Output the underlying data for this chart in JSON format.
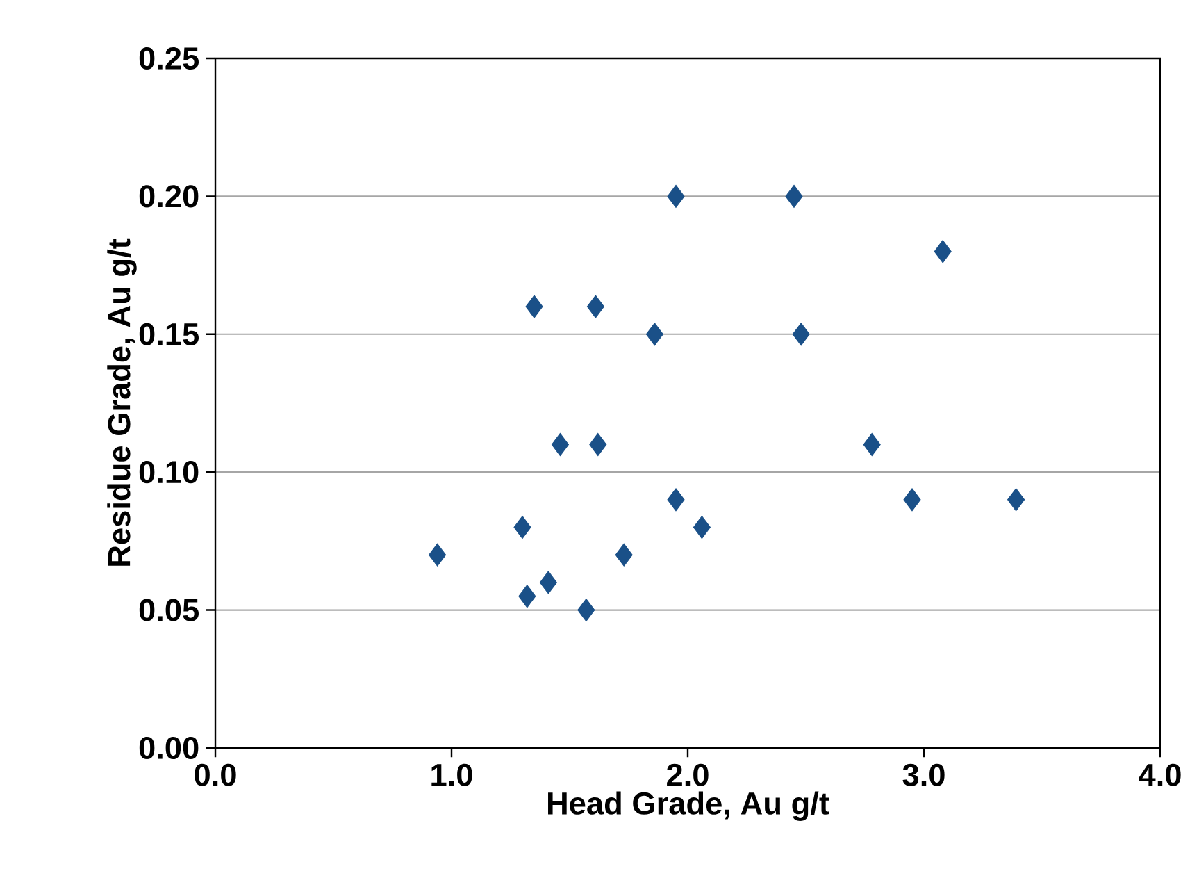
{
  "chart_data": {
    "type": "scatter",
    "xlabel": "Head Grade, Au g/t",
    "ylabel": "Residue Grade, Au g/t",
    "x": [
      0.94,
      1.3,
      1.32,
      1.35,
      1.41,
      1.46,
      1.57,
      1.61,
      1.62,
      1.73,
      1.86,
      1.95,
      1.95,
      2.06,
      2.45,
      2.48,
      2.78,
      2.95,
      3.08,
      3.39
    ],
    "values": [
      0.07,
      0.08,
      0.055,
      0.16,
      0.06,
      0.11,
      0.05,
      0.16,
      0.11,
      0.07,
      0.15,
      0.2,
      0.09,
      0.08,
      0.2,
      0.15,
      0.11,
      0.09,
      0.18,
      0.09
    ],
    "color": "#1a5088",
    "marker": "diamond",
    "grid": "y",
    "xlim": [
      0,
      4
    ],
    "ylim": [
      0,
      0.25
    ],
    "xticks": [
      {
        "value": 0,
        "label": "0.0"
      },
      {
        "value": 1,
        "label": "1.0"
      },
      {
        "value": 2,
        "label": "2.0"
      },
      {
        "value": 3,
        "label": "3.0"
      },
      {
        "value": 4,
        "label": "4.0"
      }
    ],
    "yticks": [
      {
        "value": 0,
        "label": "0.00"
      },
      {
        "value": 0.05,
        "label": "0.05"
      },
      {
        "value": 0.1,
        "label": "0.10"
      },
      {
        "value": 0.15,
        "label": "0.15"
      },
      {
        "value": 0.2,
        "label": "0.20"
      },
      {
        "value": 0.25,
        "label": "0.25"
      }
    ]
  }
}
